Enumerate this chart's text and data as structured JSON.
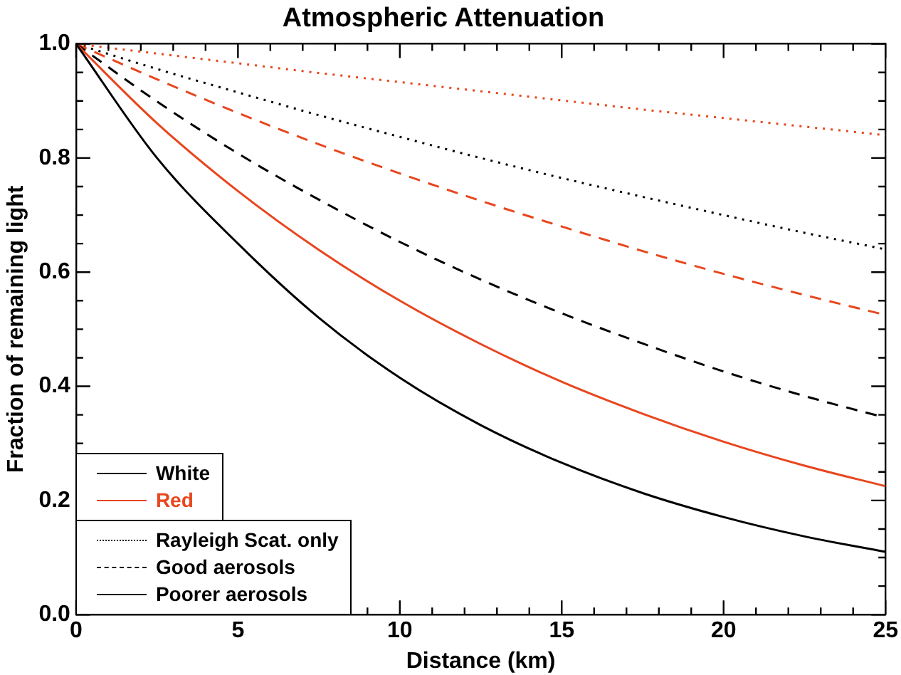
{
  "chart_data": {
    "type": "line",
    "title": "Atmospheric Attenuation",
    "xlabel": "Distance (km)",
    "ylabel": "Fraction of remaining light",
    "x": [
      0,
      2.5,
      5,
      7.5,
      10,
      12.5,
      15,
      17.5,
      20,
      22.5,
      25
    ],
    "series": [
      {
        "color": "#000000",
        "line_style": "solid",
        "values": [
          1,
          0.8,
          0.65,
          0.52,
          0.415,
          0.332,
          0.266,
          0.213,
          0.171,
          0.137,
          0.11
        ]
      },
      {
        "color": "#e8461e",
        "line_style": "solid",
        "values": [
          1,
          0.861,
          0.742,
          0.639,
          0.55,
          0.474,
          0.408,
          0.352,
          0.303,
          0.261,
          0.225
        ]
      },
      {
        "color": "#000000",
        "line_style": "dashed",
        "values": [
          1,
          0.899,
          0.808,
          0.727,
          0.653,
          0.587,
          0.528,
          0.475,
          0.426,
          0.383,
          0.345
        ]
      },
      {
        "color": "#e8461e",
        "line_style": "dashed",
        "values": [
          1,
          0.938,
          0.879,
          0.824,
          0.773,
          0.725,
          0.68,
          0.637,
          0.597,
          0.56,
          0.525
        ]
      },
      {
        "color": "#000000",
        "line_style": "dotted",
        "values": [
          1,
          0.956,
          0.915,
          0.875,
          0.837,
          0.8,
          0.765,
          0.732,
          0.7,
          0.669,
          0.64
        ]
      },
      {
        "color": "#e8461e",
        "line_style": "dotted",
        "values": [
          1,
          0.983,
          0.966,
          0.949,
          0.933,
          0.917,
          0.901,
          0.885,
          0.87,
          0.855,
          0.84
        ]
      }
    ],
    "annotations": [
      "White",
      "Red",
      "Rayleigh Scat. only",
      "Good aerosols",
      "Poorer aerosols"
    ],
    "grid": false,
    "marker": "none",
    "xlim": [
      0,
      25
    ],
    "xticks": [
      0,
      5,
      10,
      15,
      20,
      25
    ],
    "ylim": [
      0,
      1
    ],
    "yticks": [
      {
        "value": 0,
        "label": "0.0"
      },
      {
        "value": 0.2,
        "label": "0.2"
      },
      {
        "value": 0.4,
        "label": "0.4"
      },
      {
        "value": 0.6,
        "label": "0.6"
      },
      {
        "value": 0.8,
        "label": "0.8"
      },
      {
        "value": 1,
        "label": "1.0"
      }
    ]
  }
}
